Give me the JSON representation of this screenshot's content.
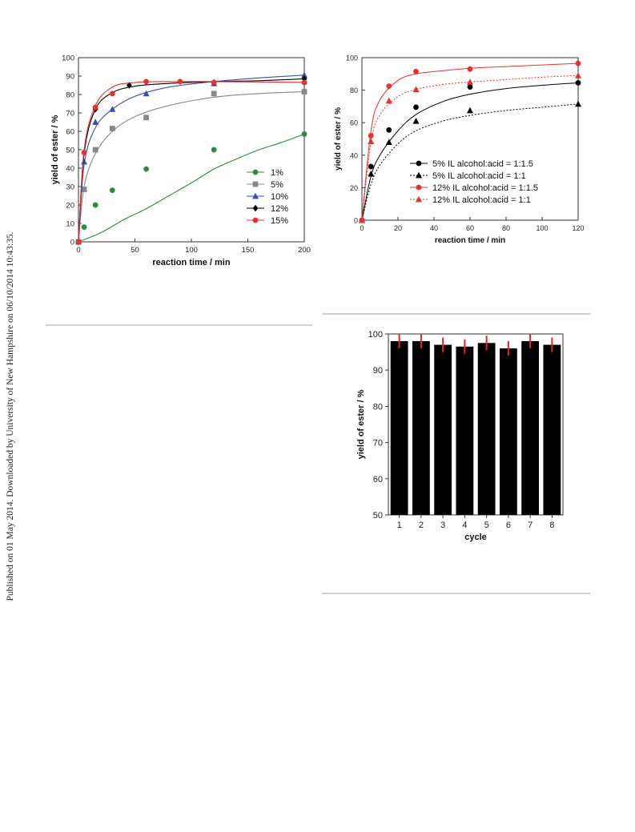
{
  "side_note": "Published on 01 May 2014. Downloaded by University of New Hampshire on 06/10/2014 10:43:35.",
  "chart_data": [
    {
      "type": "scatter",
      "xlabel": "reaction time / min",
      "ylabel": "yield of ester / %",
      "xlim": [
        0,
        200
      ],
      "ylim": [
        0,
        100
      ],
      "xticks": [
        0,
        50,
        100,
        150,
        200
      ],
      "yticks": [
        0,
        10,
        20,
        30,
        40,
        50,
        60,
        70,
        80,
        90,
        100
      ],
      "legend_position": "bottom-right",
      "series": [
        {
          "name": "1%",
          "color": "#2e8b3e",
          "marker": "circle",
          "x": [
            0,
            5,
            15,
            30,
            60,
            120,
            200
          ],
          "y": [
            0,
            8,
            20,
            28,
            39.5,
            50,
            58.5
          ],
          "fit": [
            0,
            5,
            12,
            18,
            25,
            32,
            39.5,
            45,
            50,
            54,
            58.5
          ]
        },
        {
          "name": "5%",
          "color": "#888888",
          "marker": "square",
          "x": [
            0,
            5,
            15,
            30,
            60,
            120,
            200
          ],
          "y": [
            0,
            28.5,
            50,
            61.5,
            67.5,
            80.5,
            81.5
          ],
          "fit": [
            0,
            30,
            48,
            60,
            68,
            74,
            78.5,
            80.5,
            81.5
          ]
        },
        {
          "name": "10%",
          "color": "#3c4fa8",
          "marker": "triangle",
          "x": [
            0,
            5,
            15,
            30,
            60,
            120,
            200
          ],
          "y": [
            0,
            43.5,
            65,
            72,
            80.5,
            86,
            90.5
          ],
          "fit": [
            0,
            42,
            62,
            72,
            79,
            84,
            87,
            89,
            90.5
          ]
        },
        {
          "name": "12%",
          "color": "#000000",
          "marker": "diamond",
          "x": [
            0,
            5,
            15,
            45,
            120,
            200
          ],
          "y": [
            0,
            48.5,
            72,
            85,
            86.5,
            88.5
          ],
          "fit": [
            0,
            48,
            72,
            81,
            84.5,
            86,
            87,
            87.5,
            88.5
          ]
        },
        {
          "name": "15%",
          "color": "#e8302c",
          "marker": "circle",
          "x": [
            0,
            5,
            15,
            30,
            60,
            90,
            120,
            200
          ],
          "y": [
            0,
            48.5,
            73,
            80.5,
            87,
            87,
            86.5,
            86.5
          ],
          "fit": [
            0,
            50,
            74,
            84,
            86.5,
            87,
            87,
            86.8,
            86.6
          ]
        }
      ],
      "fit_x": [
        [
          0,
          20,
          40,
          60,
          80,
          100,
          120,
          140,
          160,
          180,
          200
        ],
        [
          0,
          5,
          15,
          30,
          50,
          80,
          120,
          160,
          200
        ],
        [
          0,
          5,
          15,
          30,
          50,
          80,
          120,
          160,
          200
        ],
        [
          0,
          5,
          15,
          30,
          50,
          80,
          120,
          160,
          200
        ],
        [
          0,
          5,
          15,
          30,
          50,
          80,
          120,
          160,
          200
        ]
      ]
    },
    {
      "type": "scatter",
      "xlabel": "reaction time / min",
      "ylabel": "yield of ester / %",
      "xlim": [
        0,
        120
      ],
      "ylim": [
        0,
        100
      ],
      "xticks": [
        0,
        20,
        40,
        60,
        80,
        100,
        120
      ],
      "yticks": [
        0,
        20,
        40,
        60,
        80,
        100
      ],
      "legend_position": "bottom-right",
      "series": [
        {
          "name": "5% IL alcohol:acid = 1:1.5",
          "color": "#000000",
          "marker": "circle",
          "line": "solid",
          "x": [
            0,
            5,
            15,
            30,
            60,
            120
          ],
          "y": [
            0,
            33,
            55.5,
            69.5,
            82,
            84.5
          ],
          "fit_x": [
            0,
            5,
            10,
            20,
            30,
            45,
            60,
            80,
            100,
            120
          ],
          "fit": [
            0,
            27,
            40,
            55,
            65,
            73,
            77.5,
            81,
            83,
            84.5
          ]
        },
        {
          "name": "5% IL alcohol:acid = 1:1",
          "color": "#000000",
          "marker": "triangle",
          "line": "dotted",
          "x": [
            0,
            5,
            15,
            30,
            60,
            120
          ],
          "y": [
            0,
            28.5,
            48,
            61,
            67.5,
            71.5
          ],
          "fit_x": [
            0,
            5,
            10,
            20,
            30,
            45,
            60,
            80,
            100,
            120
          ],
          "fit": [
            0,
            22,
            34,
            47,
            55,
            61,
            64.5,
            67.5,
            69.5,
            71.5
          ]
        },
        {
          "name": "12% IL alcohol:acid = 1:1.5",
          "color": "#e8302c",
          "marker": "circle",
          "line": "solid",
          "x": [
            0,
            5,
            15,
            30,
            60,
            120
          ],
          "y": [
            0,
            52,
            82.5,
            91.5,
            93,
            96.5
          ],
          "fit_x": [
            0,
            5,
            10,
            20,
            30,
            45,
            60,
            80,
            100,
            120
          ],
          "fit": [
            0,
            55,
            74,
            86,
            90,
            92,
            93.5,
            94.5,
            95.5,
            96.5
          ]
        },
        {
          "name": "12% IL alcohol:acid = 1:1",
          "color": "#e8302c",
          "marker": "triangle",
          "line": "dotted",
          "x": [
            0,
            5,
            15,
            30,
            60,
            120
          ],
          "y": [
            0,
            48.5,
            73.5,
            80.5,
            85,
            89
          ],
          "fit_x": [
            0,
            5,
            10,
            20,
            30,
            45,
            60,
            80,
            100,
            120
          ],
          "fit": [
            0,
            48,
            65,
            76,
            80.5,
            83.5,
            85,
            86.5,
            88,
            89
          ]
        }
      ]
    },
    {
      "type": "bar",
      "xlabel": "cycle",
      "ylabel": "yield of ester / %",
      "ylim": [
        50,
        100
      ],
      "yticks": [
        50,
        60,
        70,
        80,
        90,
        100
      ],
      "categories": [
        "1",
        "2",
        "3",
        "4",
        "5",
        "6",
        "7",
        "8"
      ],
      "values": [
        98,
        98,
        97,
        96.5,
        97.5,
        96,
        98,
        97
      ],
      "errors": [
        2,
        2,
        2,
        2,
        2,
        2,
        2,
        2
      ],
      "bar_color": "#000000",
      "error_color": "#e0262b"
    }
  ]
}
